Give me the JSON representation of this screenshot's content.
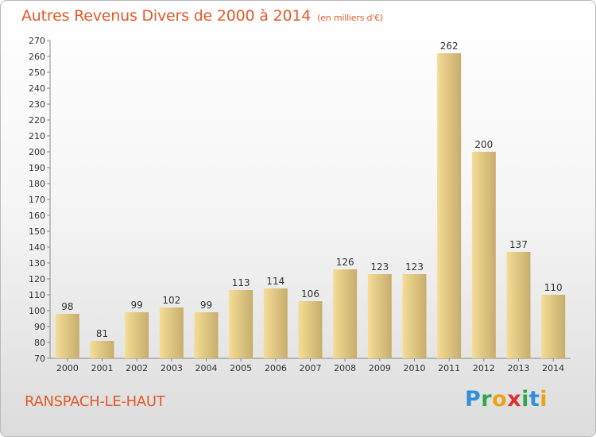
{
  "header": {
    "title": "Autres Revenus Divers de 2000 à 2014",
    "unit": "(en milliers d'€)"
  },
  "footer": {
    "commune": "RANSPACH-LE-HAUT",
    "logo_text": "Proxiti"
  },
  "colors": {
    "title": "#e05a2b",
    "bar_light": "#f4dd96",
    "bar_dark": "#c7ad6c",
    "logo": [
      "#2f8fd8",
      "#2fa84a",
      "#e8a319",
      "#d8322e",
      "#2fa84a",
      "#2f8fd8",
      "#e8a319"
    ]
  },
  "chart_data": {
    "type": "bar",
    "title": "Autres Revenus Divers de 2000 à 2014",
    "subtitle": "(en milliers d'€)",
    "categories": [
      "2000",
      "2001",
      "2002",
      "2003",
      "2004",
      "2005",
      "2006",
      "2007",
      "2008",
      "2009",
      "2010",
      "2011",
      "2012",
      "2013",
      "2014"
    ],
    "values": [
      98,
      81,
      99,
      102,
      99,
      113,
      114,
      106,
      126,
      123,
      123,
      262,
      200,
      137,
      110
    ],
    "ylim": [
      70,
      270
    ],
    "ytick_step": 10,
    "grid": false,
    "legend": "none"
  }
}
